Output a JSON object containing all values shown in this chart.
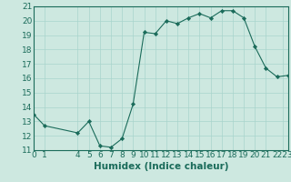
{
  "xlabel": "Humidex (Indice chaleur)",
  "background_color": "#cde8e0",
  "line_color": "#1a6b5a",
  "grid_color": "#a8d4cc",
  "x_data": [
    0,
    1,
    4,
    5,
    6,
    7,
    8,
    9,
    10,
    11,
    12,
    13,
    14,
    15,
    16,
    17,
    18,
    19,
    20,
    21,
    22,
    23
  ],
  "y_data": [
    13.5,
    12.7,
    12.2,
    13.0,
    11.3,
    11.2,
    11.8,
    14.2,
    19.2,
    19.1,
    20.0,
    19.8,
    20.2,
    20.5,
    20.2,
    20.7,
    20.7,
    20.2,
    18.2,
    16.7,
    16.1,
    16.2
  ],
  "xlim": [
    0,
    23
  ],
  "ylim": [
    11,
    21
  ],
  "yticks": [
    11,
    12,
    13,
    14,
    15,
    16,
    17,
    18,
    19,
    20,
    21
  ],
  "xtick_positions": [
    0,
    1,
    4,
    5,
    6,
    7,
    8,
    9,
    10,
    11,
    12,
    13,
    14,
    15,
    16,
    17,
    18,
    19,
    20,
    21,
    22.5
  ],
  "xtick_labels": [
    "0",
    "1",
    "4",
    "5",
    "6",
    "7",
    "8",
    "9",
    "10",
    "11",
    "12",
    "13",
    "14",
    "15",
    "16",
    "17",
    "18",
    "19",
    "20",
    "21",
    "2223"
  ],
  "fontsize_tick": 6.5,
  "fontsize_label": 7.5
}
